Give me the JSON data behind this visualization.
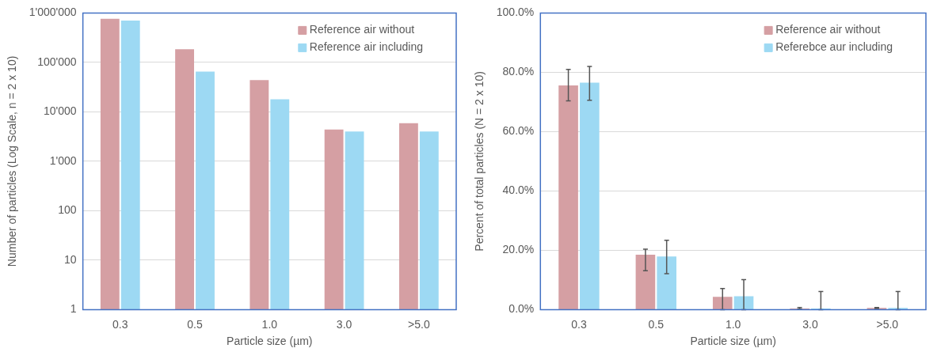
{
  "chart_data": [
    {
      "type": "bar",
      "xlabel": "Particle size (µm)",
      "ylabel": "Number of particles (Log Scale, n = 2 x 10)",
      "categories": [
        "0.3",
        "0.5",
        "1.0",
        "3.0",
        ">5.0"
      ],
      "series": [
        {
          "name": "Reference air without",
          "color": "#d59fa3",
          "values": [
            760000,
            185000,
            44000,
            4400,
            5900
          ]
        },
        {
          "name": "Reference air including",
          "color": "#9dd9f3",
          "values": [
            700000,
            65000,
            18000,
            4000,
            4000
          ]
        }
      ],
      "log": true,
      "ylim": [
        1,
        1000000
      ],
      "yticks": [
        {
          "value": 1,
          "label": "1"
        },
        {
          "value": 10,
          "label": "10"
        },
        {
          "value": 100,
          "label": "100"
        },
        {
          "value": 1000,
          "label": "1'000"
        },
        {
          "value": 10000,
          "label": "10'000"
        },
        {
          "value": 100000,
          "label": "100'000"
        },
        {
          "value": 1000000,
          "label": "1'000'000"
        }
      ],
      "grid": "y",
      "legend": "top right"
    },
    {
      "type": "bar",
      "xlabel": "Particle size (µm)",
      "ylabel": "Percent of total particles (N = 2 x 10)",
      "categories": [
        "0.3",
        "0.5",
        "1.0",
        "3.0",
        ">5.0"
      ],
      "series": [
        {
          "name": "Reference air without",
          "color": "#d59fa3",
          "values": [
            75.6,
            18.5,
            4.3,
            0.4,
            0.6
          ],
          "errors": [
            [
              70.4,
              81.0
            ],
            [
              13.1,
              20.4
            ],
            [
              0,
              7.1
            ],
            [
              0.2,
              0.7
            ],
            [
              0.4,
              0.7
            ]
          ]
        },
        {
          "name": "Referebce aur including",
          "color": "#9dd9f3",
          "values": [
            76.5,
            17.9,
            4.5,
            0.4,
            0.6
          ],
          "errors": [
            [
              70.6,
              82.0
            ],
            [
              12.1,
              23.4
            ],
            [
              0,
              10.1
            ],
            [
              0,
              6.1
            ],
            [
              0,
              6.1
            ]
          ]
        }
      ],
      "ylim": [
        0,
        100
      ],
      "yticks": [
        {
          "value": 0,
          "label": "0.0%"
        },
        {
          "value": 20,
          "label": "20.0%"
        },
        {
          "value": 40,
          "label": "40.0%"
        },
        {
          "value": 60,
          "label": "60.0%"
        },
        {
          "value": 80,
          "label": "80.0%"
        },
        {
          "value": 100,
          "label": "100.0%"
        }
      ],
      "grid": "y",
      "legend": "top right"
    }
  ]
}
